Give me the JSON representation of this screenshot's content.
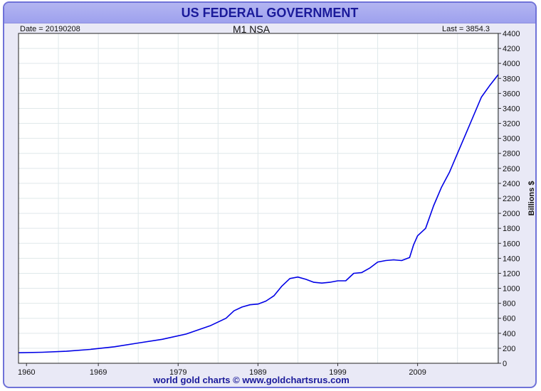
{
  "header": {
    "title": "US FEDERAL GOVERNMENT"
  },
  "info": {
    "date": "Date = 20190208",
    "last": "Last = 3854.3"
  },
  "footer": {
    "credit": "world gold charts © www.goldchartsrus.com"
  },
  "colors": {
    "series": "#0000e6",
    "frame": "#6f72d8",
    "title_bar": "#a6a8ef",
    "title_text": "#1a1a9a",
    "plot_bg": "#ffffff",
    "grid": "#dfe8ea"
  },
  "chart_data": {
    "type": "line",
    "title": "M1 NSA",
    "xlabel": "",
    "ylabel": "Billions $",
    "xlim": [
      1959.0,
      2019.11
    ],
    "ylim": [
      0,
      4400
    ],
    "grid": true,
    "y_axis_side": "right",
    "xticks": [
      1960,
      1969,
      1979,
      1989,
      1999,
      2009
    ],
    "yticks": [
      0,
      200,
      400,
      600,
      800,
      1000,
      1200,
      1400,
      1600,
      1800,
      2000,
      2200,
      2400,
      2600,
      2800,
      3000,
      3200,
      3400,
      3600,
      3800,
      4000,
      4200,
      4400
    ],
    "series": [
      {
        "x": [
          1959.0,
          1962,
          1965,
          1968,
          1971,
          1974,
          1977,
          1980,
          1983,
          1985,
          1986,
          1987,
          1988,
          1989,
          1990,
          1991,
          1992,
          1993,
          1994,
          1995,
          1996,
          1997,
          1998,
          1999,
          2000,
          2001,
          2002,
          2003,
          2004,
          2005,
          2006,
          2007,
          2008,
          2008.5,
          2009,
          2010,
          2011,
          2012,
          2013,
          2014,
          2015,
          2016,
          2017,
          2018,
          2019.1
        ],
        "y": [
          140,
          147,
          160,
          185,
          220,
          270,
          320,
          390,
          500,
          600,
          700,
          750,
          780,
          790,
          830,
          900,
          1030,
          1130,
          1150,
          1120,
          1080,
          1070,
          1080,
          1100,
          1100,
          1200,
          1210,
          1270,
          1350,
          1370,
          1380,
          1370,
          1410,
          1580,
          1700,
          1800,
          2100,
          2350,
          2550,
          2800,
          3050,
          3300,
          3550,
          3700,
          3850
        ]
      }
    ]
  }
}
